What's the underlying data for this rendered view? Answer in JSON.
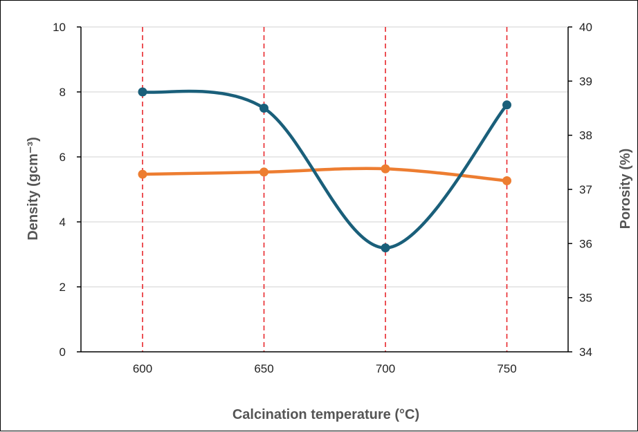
{
  "chart_data": {
    "type": "line",
    "xlabel": "Calcination temperature (°C)",
    "ylabel": "Density (gcm⁻³)",
    "y2label": "Porosity (%)",
    "categories": [
      "600",
      "650",
      "700",
      "750"
    ],
    "x": [
      600,
      650,
      700,
      750
    ],
    "ylim": [
      0,
      10
    ],
    "y2lim": [
      34,
      40
    ],
    "y_ticks": [
      "0",
      "2",
      "4",
      "6",
      "8",
      "10"
    ],
    "y2_ticks": [
      "34",
      "35",
      "36",
      "37",
      "38",
      "39",
      "40"
    ],
    "grid": true,
    "vertical_reference_lines": "red dashed at each category",
    "series": [
      {
        "axis": "left",
        "color": "#1a5f7a",
        "smooth": true,
        "values": [
          8.0,
          7.5,
          3.2,
          7.6
        ]
      },
      {
        "axis": "right",
        "color": "#ed7d31",
        "smooth": true,
        "values": [
          37.28,
          37.32,
          37.38,
          37.16
        ]
      }
    ]
  }
}
